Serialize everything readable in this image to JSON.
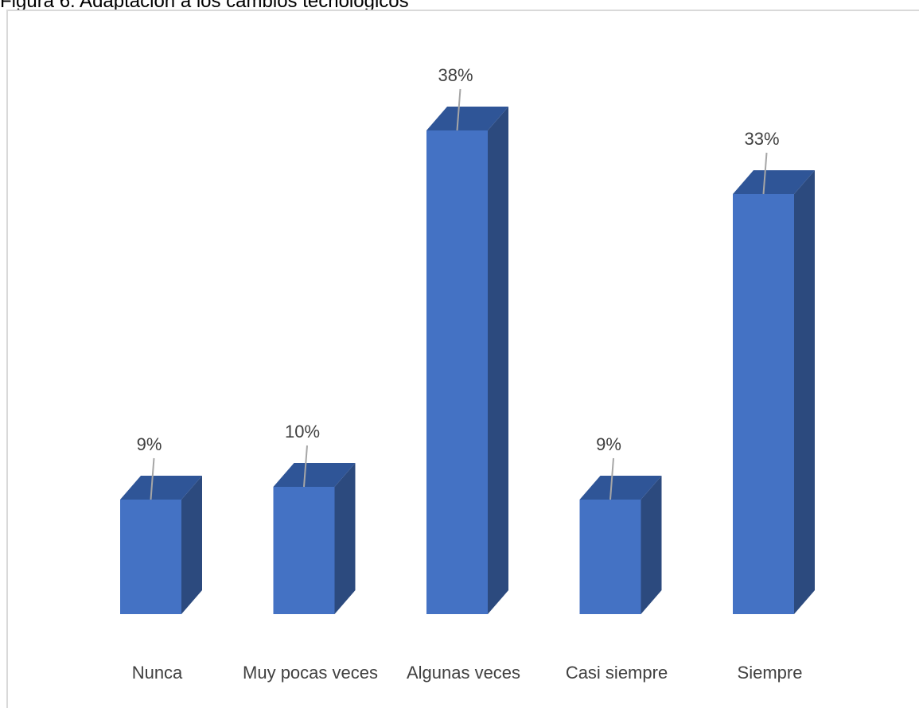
{
  "figure_caption": "Figura 6. Adaptación a los cambios tecnológicos",
  "chart_data": {
    "type": "bar",
    "style": "3d-column",
    "categories": [
      "Nunca",
      "Muy pocas veces",
      "Algunas veces",
      "Casi siempre",
      "Siempre"
    ],
    "values": [
      9,
      10,
      38,
      9,
      33
    ],
    "data_labels": [
      "9%",
      "10%",
      "38%",
      "9%",
      "33%"
    ],
    "value_unit": "%",
    "grid": false,
    "legend": "none",
    "colors": {
      "front": "#4472c4",
      "top": "#2f5597",
      "side": "#2c4a7e",
      "leader": "#a6a6a6",
      "text": "#404040"
    }
  }
}
